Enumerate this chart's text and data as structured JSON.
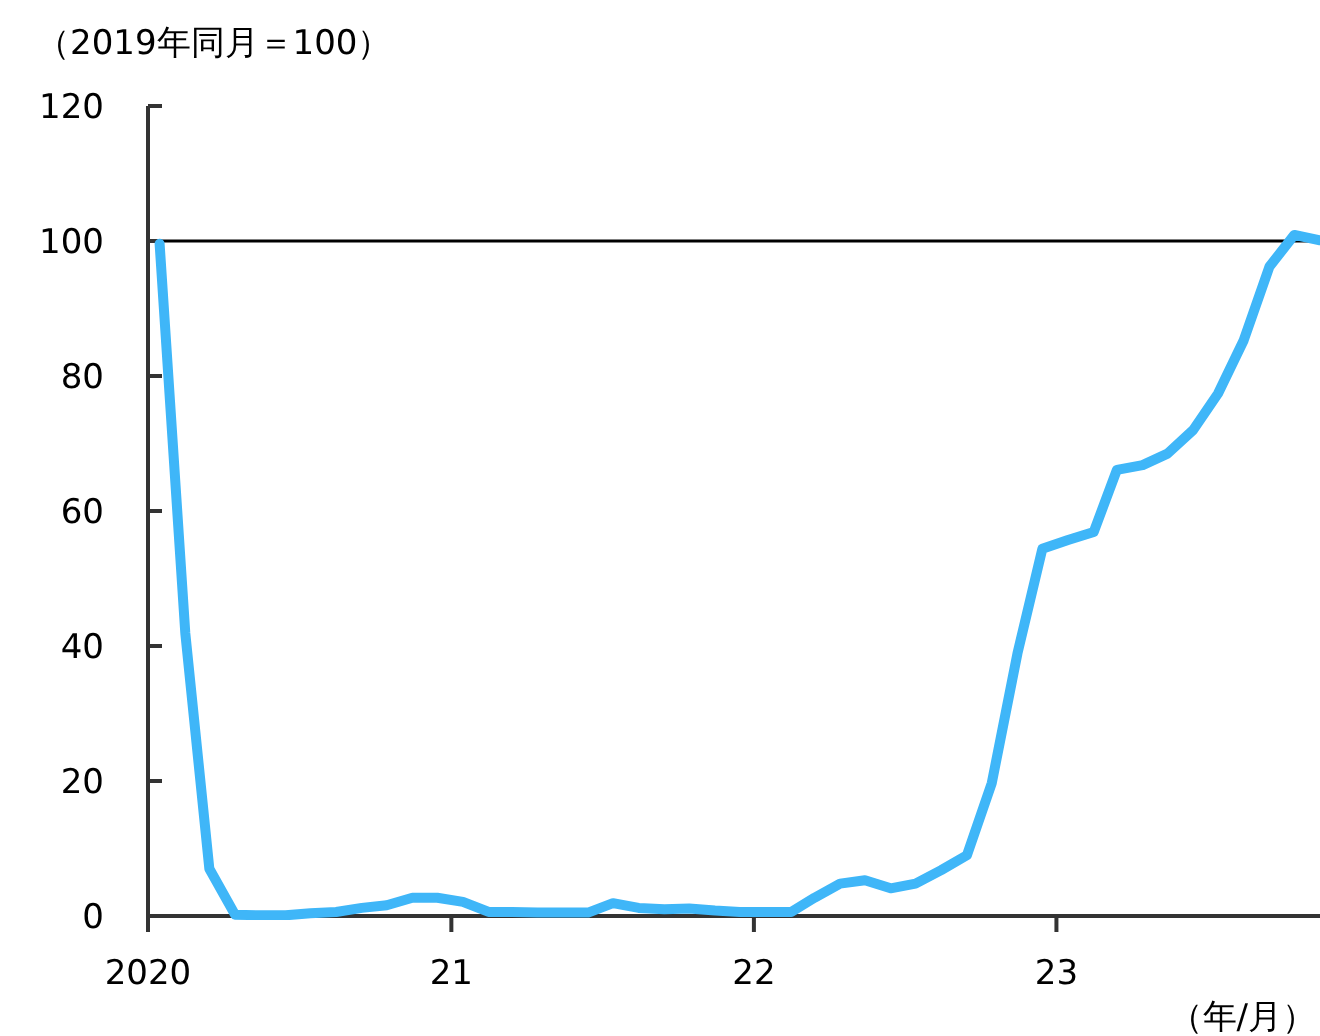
{
  "chart_data": {
    "type": "line",
    "ylabel": "（2019年同月＝100）",
    "annotations": [
      "（年/月）"
    ],
    "x": [
      "2020-01-15",
      "2020-02-15",
      "2020-03-15",
      "2020-04-15",
      "2020-05-15",
      "2020-06-15",
      "2020-07-15",
      "2020-08-15",
      "2020-09-15",
      "2020-10-15",
      "2020-11-15",
      "2020-12-15",
      "2021-01-15",
      "2021-02-15",
      "2021-03-15",
      "2021-04-15",
      "2021-05-15",
      "2021-06-15",
      "2021-07-15",
      "2021-08-15",
      "2021-09-15",
      "2021-10-15",
      "2021-11-15",
      "2021-12-15",
      "2022-01-15",
      "2022-02-15",
      "2022-03-15",
      "2022-04-15",
      "2022-05-15",
      "2022-06-15",
      "2022-07-15",
      "2022-08-15",
      "2022-09-15",
      "2022-10-15",
      "2022-11-15",
      "2022-12-15",
      "2023-01-15",
      "2023-02-15",
      "2023-03-15",
      "2023-04-15",
      "2023-05-15",
      "2023-06-15",
      "2023-07-15",
      "2023-08-15",
      "2023-09-15",
      "2023-10-15",
      "2023-11-15"
    ],
    "series": [
      {
        "color": "#3fb6f8",
        "values": [
          99.6,
          41.9,
          7.0,
          0.2,
          0.1,
          0.1,
          0.4,
          0.6,
          1.2,
          1.6,
          2.7,
          2.7,
          2.1,
          0.6,
          0.6,
          0.5,
          0.5,
          0.5,
          1.9,
          1.2,
          1.0,
          1.1,
          0.8,
          0.6,
          0.6,
          0.6,
          2.7,
          4.8,
          5.3,
          4.1,
          4.8,
          6.8,
          9.0,
          19.7,
          38.9,
          54.4,
          55.7,
          56.9,
          66.1,
          66.8,
          68.5,
          72.0,
          77.4,
          85.3,
          96.2,
          100.9,
          100.1
        ]
      }
    ],
    "xlim": [
      "2020-01-01",
      "2023-11-15"
    ],
    "xticks": [
      {
        "value": "2020-01-01",
        "label": "2020"
      },
      {
        "value": "2021-01-01",
        "label": "21"
      },
      {
        "value": "2022-01-01",
        "label": "22"
      },
      {
        "value": "2023-01-01",
        "label": "23"
      }
    ],
    "ylim": [
      0,
      120
    ],
    "yticks": [
      0,
      20,
      40,
      60,
      80,
      100,
      120
    ],
    "ref_lines": [
      {
        "axis": "y",
        "value": 100,
        "color": "#000000"
      }
    ],
    "grid": false
  }
}
